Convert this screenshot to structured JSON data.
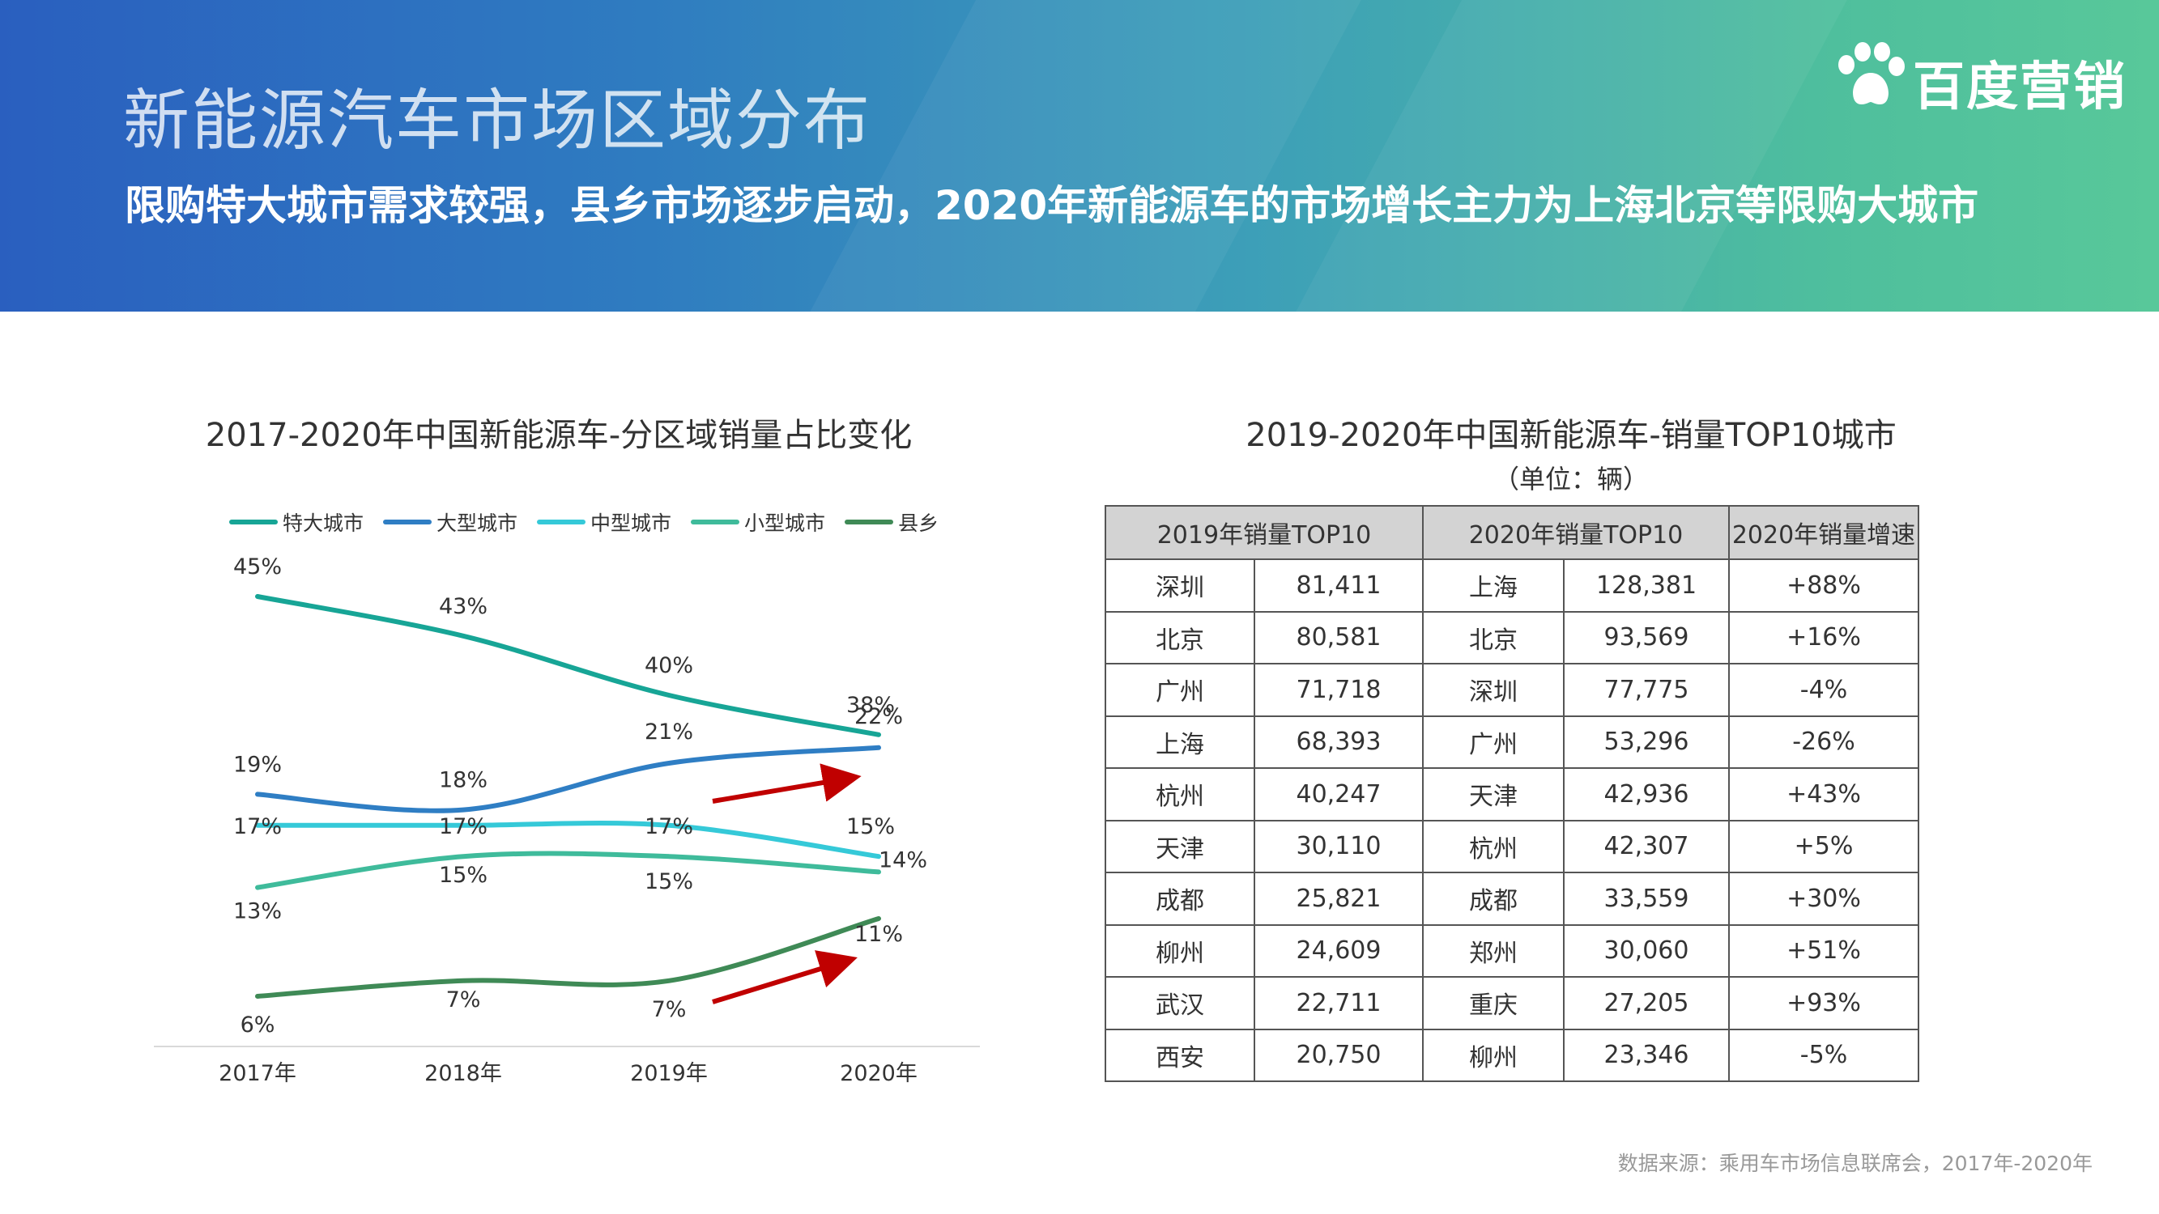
{
  "header": {
    "title": "新能源汽车市场区域分布",
    "subtitle": "限购特大城市需求较强，县乡市场逐步启动，2020年新能源车的市场增长主力为上海北京等限购大城市",
    "logo_text": "百度营销",
    "colors": {
      "gradient_start": "#2a5fbf",
      "gradient_end": "#58c89a"
    }
  },
  "chart_data": {
    "type": "line",
    "title": "2017-2020年中国新能源车-分区域销量占比变化",
    "xlabel": "",
    "ylabel": "",
    "x": [
      "2017年",
      "2018年",
      "2019年",
      "2020年"
    ],
    "legend_position": "top",
    "grid": false,
    "series": [
      {
        "name": "特大城市",
        "color": "#17a596",
        "values": [
          45,
          43,
          40,
          38
        ],
        "labels": [
          "45%",
          "43%",
          "40%",
          "38%"
        ]
      },
      {
        "name": "大型城市",
        "color": "#2f7ec4",
        "values": [
          19,
          18,
          21,
          22
        ],
        "labels": [
          "19%",
          "18%",
          "21%",
          "22%"
        ]
      },
      {
        "name": "中型城市",
        "color": "#35c9d8",
        "values": [
          17,
          17,
          17,
          15
        ],
        "labels": [
          "17%",
          "17%",
          "17%",
          "15%"
        ]
      },
      {
        "name": "小型城市",
        "color": "#3fbb9b",
        "values": [
          13,
          15,
          15,
          14
        ],
        "labels": [
          "13%",
          "15%",
          "15%",
          "14%"
        ]
      },
      {
        "name": "县乡",
        "color": "#3f8a56",
        "values": [
          6,
          7,
          7,
          11
        ],
        "labels": [
          "6%",
          "7%",
          "7%",
          "11%"
        ]
      }
    ],
    "annotations": [
      {
        "type": "arrow",
        "color": "#c00000",
        "target_series": "大型城市",
        "between": [
          "2019年",
          "2020年"
        ]
      },
      {
        "type": "arrow",
        "color": "#c00000",
        "target_series": "县乡",
        "between": [
          "2019年",
          "2020年"
        ]
      }
    ]
  },
  "table": {
    "title": "2019-2020年中国新能源车-销量TOP10城市",
    "unit": "（单位：辆）",
    "headers": [
      "2019年销量TOP10",
      "2020年销量TOP10",
      "2020年销量增速"
    ],
    "rows": [
      [
        "深圳",
        "81,411",
        "上海",
        "128,381",
        "+88%"
      ],
      [
        "北京",
        "80,581",
        "北京",
        "93,569",
        "+16%"
      ],
      [
        "广州",
        "71,718",
        "深圳",
        "77,775",
        "-4%"
      ],
      [
        "上海",
        "68,393",
        "广州",
        "53,296",
        "-26%"
      ],
      [
        "杭州",
        "40,247",
        "天津",
        "42,936",
        "+43%"
      ],
      [
        "天津",
        "30,110",
        "杭州",
        "42,307",
        "+5%"
      ],
      [
        "成都",
        "25,821",
        "成都",
        "33,559",
        "+30%"
      ],
      [
        "柳州",
        "24,609",
        "郑州",
        "30,060",
        "+51%"
      ],
      [
        "武汉",
        "22,711",
        "重庆",
        "27,205",
        "+93%"
      ],
      [
        "西安",
        "20,750",
        "柳州",
        "23,346",
        "-5%"
      ]
    ]
  },
  "source": "数据来源：乘用车市场信息联席会，2017年-2020年"
}
